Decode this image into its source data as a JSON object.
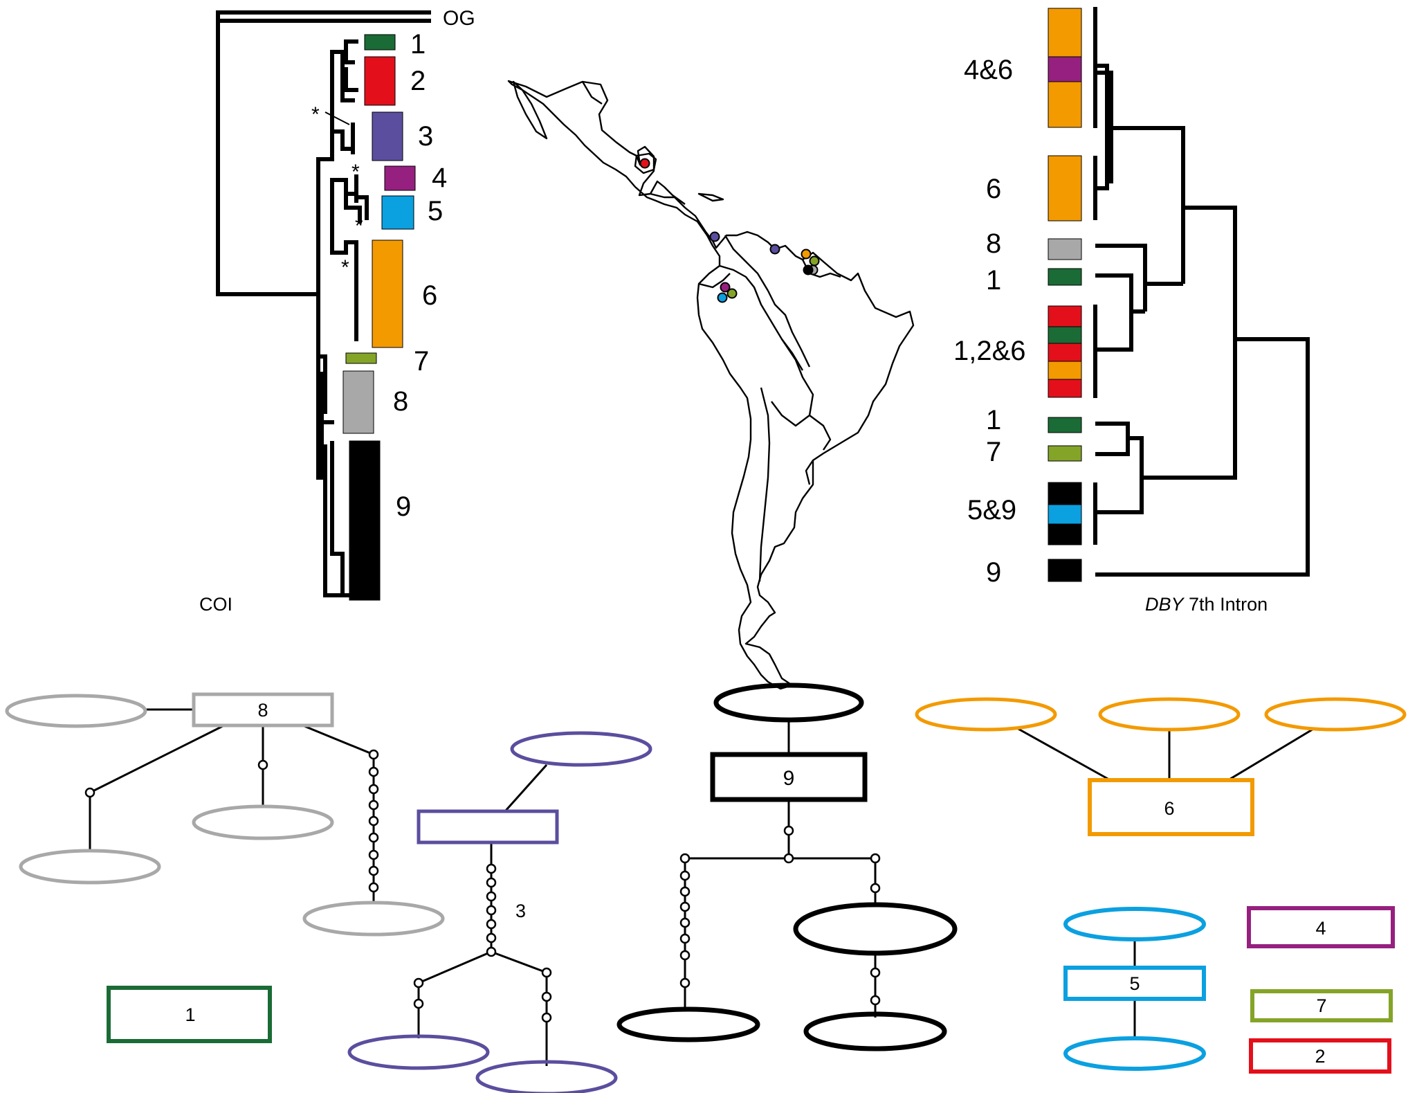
{
  "colors": {
    "clade1": "#1a6b35",
    "clade2": "#e3101b",
    "clade3": "#5b4e9e",
    "clade4": "#96207f",
    "clade5": "#0ba0e0",
    "clade6": "#f39a00",
    "clade7": "#84a428",
    "clade8": "#a8a8a8",
    "clade9": "#000000"
  },
  "coi_tree": {
    "title": "COI",
    "outgroup_label": "OG",
    "asterisk": "*",
    "clade_labels": [
      "1",
      "2",
      "3",
      "4",
      "5",
      "6",
      "7",
      "8",
      "9"
    ]
  },
  "dby_tree": {
    "title_italic": "DBY",
    "title_rest": " 7th Intron",
    "tip_labels": [
      "4&6",
      "6",
      "8",
      "1",
      "1,2&6",
      "1",
      "7",
      "5&9",
      "9"
    ]
  },
  "map": {
    "sample_sites": [
      "clade2",
      "clade3",
      "clade3",
      "clade4",
      "clade5",
      "clade7",
      "clade6",
      "clade7",
      "clade8",
      "clade9"
    ]
  },
  "networks": {
    "net8_label": "8",
    "net3_label": "3",
    "net9_label": "9",
    "net6_label": "6",
    "net1_label": "1",
    "net4_label": "4",
    "net5_label": "5",
    "net7_label": "7",
    "net2_label": "2"
  }
}
